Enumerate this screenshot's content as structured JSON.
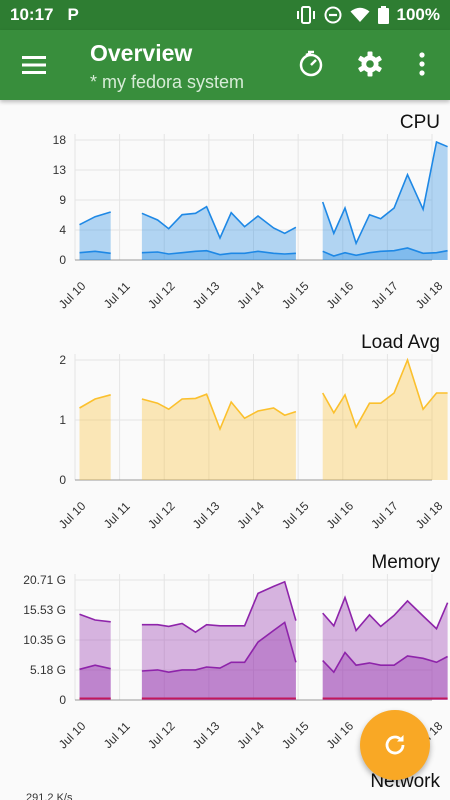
{
  "status": {
    "time": "10:17",
    "battery": "100%",
    "p_icon": "P"
  },
  "appbar": {
    "title": "Overview",
    "subtitle": "* my fedora system"
  },
  "x_ticks": [
    "Jul 10",
    "Jul 11",
    "Jul 12",
    "Jul 13",
    "Jul 14",
    "Jul 15",
    "Jul 16",
    "Jul 17",
    "Jul 18"
  ],
  "charts": {
    "cpu": {
      "title": "CPU",
      "yticks": [
        "0",
        "4",
        "9",
        "13",
        "18"
      ]
    },
    "load": {
      "title": "Load Avg",
      "yticks": [
        "0",
        "1",
        "2"
      ]
    },
    "memory": {
      "title": "Memory",
      "yticks": [
        "0",
        "5.18 G",
        "10.35 G",
        "15.53 G",
        "20.71 G"
      ]
    }
  },
  "network": {
    "title": "Network",
    "first_tick": "291.2 K/s"
  },
  "chart_data": [
    {
      "type": "area",
      "title": "CPU",
      "x_unit": "date",
      "ylim": [
        0,
        18
      ],
      "series": [
        {
          "values": [
            [
              10.1,
              5.3
            ],
            [
              10.45,
              6.5
            ],
            [
              10.8,
              7.2
            ],
            [
              null,
              null
            ],
            [
              11.5,
              7.0
            ],
            [
              11.85,
              6.0
            ],
            [
              12.1,
              4.7
            ],
            [
              12.4,
              6.8
            ],
            [
              12.7,
              7.0
            ],
            [
              12.95,
              8.0
            ],
            [
              13.25,
              3.3
            ],
            [
              13.5,
              7.1
            ],
            [
              13.8,
              5.0
            ],
            [
              14.1,
              6.6
            ],
            [
              14.45,
              4.8
            ],
            [
              14.7,
              4.0
            ],
            [
              14.95,
              4.9
            ],
            [
              null,
              null
            ],
            [
              15.55,
              8.7
            ],
            [
              15.8,
              4.0
            ],
            [
              16.05,
              7.8
            ],
            [
              16.3,
              2.5
            ],
            [
              16.6,
              6.8
            ],
            [
              16.85,
              6.2
            ],
            [
              17.15,
              7.8
            ],
            [
              17.45,
              12.8
            ],
            [
              17.8,
              7.6
            ],
            [
              18.1,
              17.7
            ],
            [
              18.35,
              17.0
            ]
          ],
          "color": "#1e88e5"
        },
        {
          "values": [
            [
              10.1,
              1.1
            ],
            [
              10.45,
              1.3
            ],
            [
              10.8,
              1.0
            ],
            [
              null,
              null
            ],
            [
              11.5,
              1.1
            ],
            [
              11.85,
              1.2
            ],
            [
              12.1,
              0.9
            ],
            [
              12.4,
              1.1
            ],
            [
              12.7,
              1.3
            ],
            [
              12.95,
              1.4
            ],
            [
              13.25,
              0.8
            ],
            [
              13.5,
              1.0
            ],
            [
              13.8,
              1.0
            ],
            [
              14.1,
              1.3
            ],
            [
              14.45,
              1.0
            ],
            [
              14.7,
              0.9
            ],
            [
              14.95,
              1.0
            ],
            [
              null,
              null
            ],
            [
              15.55,
              1.3
            ],
            [
              15.8,
              0.6
            ],
            [
              16.05,
              1.1
            ],
            [
              16.3,
              0.7
            ],
            [
              16.6,
              1.1
            ],
            [
              16.85,
              1.3
            ],
            [
              17.15,
              1.4
            ],
            [
              17.45,
              1.8
            ],
            [
              17.8,
              1.0
            ],
            [
              18.1,
              1.1
            ],
            [
              18.35,
              1.4
            ]
          ],
          "color": "#1e88e5"
        }
      ]
    },
    {
      "type": "area",
      "title": "Load Avg",
      "x_unit": "date",
      "ylim": [
        0,
        2
      ],
      "series": [
        {
          "values": [
            [
              10.1,
              1.2
            ],
            [
              10.45,
              1.35
            ],
            [
              10.8,
              1.42
            ],
            [
              null,
              null
            ],
            [
              11.5,
              1.35
            ],
            [
              11.85,
              1.28
            ],
            [
              12.1,
              1.18
            ],
            [
              12.4,
              1.35
            ],
            [
              12.7,
              1.36
            ],
            [
              12.95,
              1.43
            ],
            [
              13.25,
              0.85
            ],
            [
              13.5,
              1.3
            ],
            [
              13.8,
              1.03
            ],
            [
              14.1,
              1.15
            ],
            [
              14.45,
              1.2
            ],
            [
              14.7,
              1.08
            ],
            [
              14.95,
              1.14
            ],
            [
              null,
              null
            ],
            [
              15.55,
              1.45
            ],
            [
              15.8,
              1.12
            ],
            [
              16.05,
              1.42
            ],
            [
              16.3,
              0.88
            ],
            [
              16.6,
              1.28
            ],
            [
              16.85,
              1.28
            ],
            [
              17.15,
              1.45
            ],
            [
              17.45,
              2.0
            ],
            [
              17.8,
              1.18
            ],
            [
              18.1,
              1.45
            ],
            [
              18.35,
              1.45
            ]
          ],
          "color": "#fbc02d"
        }
      ]
    },
    {
      "type": "area",
      "title": "Memory",
      "x_unit": "date",
      "ylim": [
        0,
        20.71
      ],
      "series": [
        {
          "values": [
            [
              10.1,
              14.8
            ],
            [
              10.45,
              13.8
            ],
            [
              10.8,
              13.5
            ],
            [
              null,
              null
            ],
            [
              11.5,
              13.0
            ],
            [
              11.85,
              13.0
            ],
            [
              12.1,
              12.7
            ],
            [
              12.4,
              13.2
            ],
            [
              12.7,
              11.7
            ],
            [
              12.95,
              13.0
            ],
            [
              13.25,
              12.8
            ],
            [
              13.5,
              12.8
            ],
            [
              13.8,
              12.8
            ],
            [
              14.1,
              18.4
            ],
            [
              14.45,
              19.6
            ],
            [
              14.7,
              20.4
            ],
            [
              14.95,
              13.7
            ],
            [
              null,
              null
            ],
            [
              15.55,
              15.0
            ],
            [
              15.8,
              12.8
            ],
            [
              16.05,
              17.7
            ],
            [
              16.3,
              12.0
            ],
            [
              16.6,
              14.7
            ],
            [
              16.85,
              12.7
            ],
            [
              17.15,
              14.6
            ],
            [
              17.45,
              17.1
            ],
            [
              17.8,
              14.5
            ],
            [
              18.1,
              12.3
            ],
            [
              18.35,
              16.8
            ]
          ],
          "color": "#8e24aa"
        },
        {
          "values": [
            [
              10.1,
              5.3
            ],
            [
              10.45,
              6.0
            ],
            [
              10.8,
              5.4
            ],
            [
              null,
              null
            ],
            [
              11.5,
              5.0
            ],
            [
              11.85,
              5.2
            ],
            [
              12.1,
              4.8
            ],
            [
              12.4,
              5.2
            ],
            [
              12.7,
              5.2
            ],
            [
              12.95,
              5.7
            ],
            [
              13.25,
              5.5
            ],
            [
              13.5,
              6.5
            ],
            [
              13.8,
              6.5
            ],
            [
              14.1,
              10.0
            ],
            [
              14.45,
              12.0
            ],
            [
              14.7,
              13.4
            ],
            [
              14.95,
              6.5
            ],
            [
              null,
              null
            ],
            [
              15.55,
              6.8
            ],
            [
              15.8,
              4.8
            ],
            [
              16.05,
              8.2
            ],
            [
              16.3,
              6.0
            ],
            [
              16.6,
              6.4
            ],
            [
              16.85,
              6.0
            ],
            [
              17.15,
              6.0
            ],
            [
              17.45,
              7.6
            ],
            [
              17.8,
              7.2
            ],
            [
              18.1,
              6.5
            ],
            [
              18.35,
              7.5
            ]
          ],
          "color": "#8e24aa"
        },
        {
          "values": [
            [
              10.1,
              0.3
            ],
            [
              10.45,
              0.3
            ],
            [
              10.8,
              0.3
            ],
            [
              null,
              null
            ],
            [
              11.5,
              0.3
            ],
            [
              11.85,
              0.3
            ],
            [
              12.1,
              0.3
            ],
            [
              12.4,
              0.3
            ],
            [
              12.7,
              0.3
            ],
            [
              12.95,
              0.3
            ],
            [
              13.25,
              0.3
            ],
            [
              13.5,
              0.3
            ],
            [
              13.8,
              0.3
            ],
            [
              14.1,
              0.3
            ],
            [
              14.45,
              0.3
            ],
            [
              14.7,
              0.3
            ],
            [
              14.95,
              0.3
            ],
            [
              null,
              null
            ],
            [
              15.55,
              0.3
            ],
            [
              15.8,
              0.3
            ],
            [
              16.05,
              0.3
            ],
            [
              16.3,
              0.3
            ],
            [
              16.6,
              0.3
            ],
            [
              16.85,
              0.3
            ],
            [
              17.15,
              0.3
            ],
            [
              17.45,
              0.3
            ],
            [
              17.8,
              0.3
            ],
            [
              18.1,
              0.3
            ],
            [
              18.35,
              0.3
            ]
          ],
          "color": "#c2185b"
        }
      ]
    }
  ],
  "colors": {
    "statusbar": "#2e7d32",
    "appbar": "#388e3c",
    "fab": "#f9a825"
  },
  "icons": {
    "menu": "menu-icon",
    "timer": "timer-icon",
    "settings": "gear-icon",
    "more": "more-vert-icon",
    "refresh": "refresh-icon"
  }
}
